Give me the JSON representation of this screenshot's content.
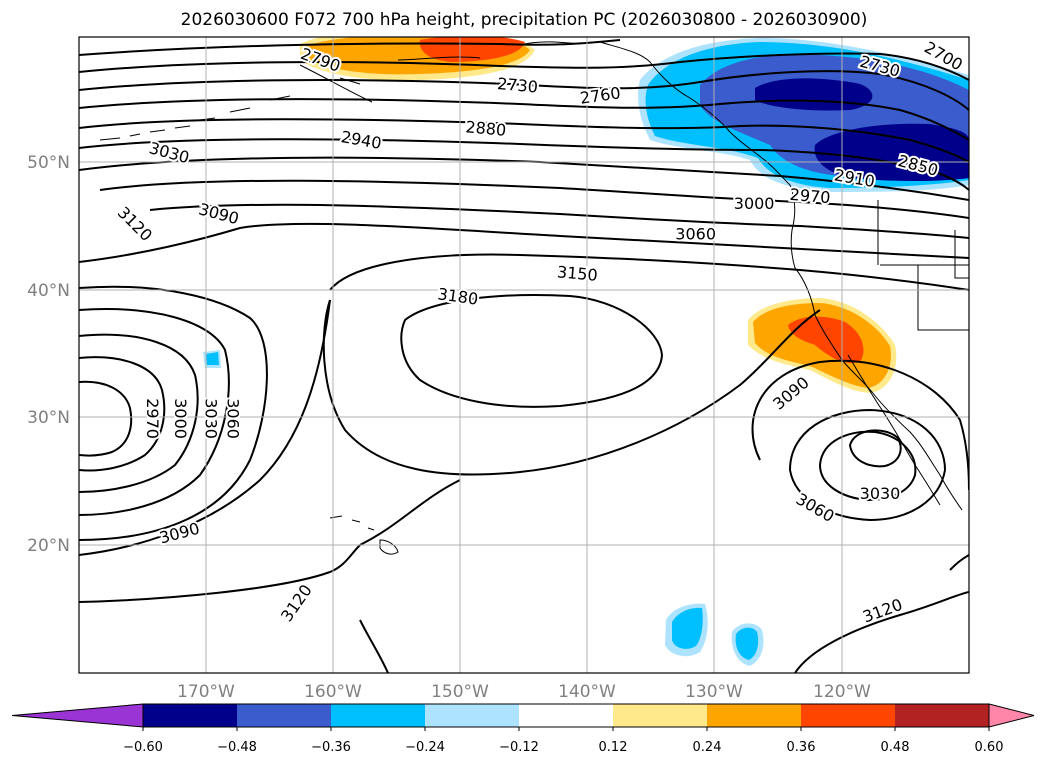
{
  "title": "2026030600 F072 700 hPa height, precipitation PC (2026030800 - 2026030900)",
  "map": {
    "lon_range": [
      -180,
      -110
    ],
    "lat_range": [
      10,
      60
    ],
    "lat_labels": [
      "50°N",
      "40°N",
      "30°N",
      "20°N"
    ],
    "lon_labels": [
      "170°W",
      "160°W",
      "150°W",
      "140°W",
      "130°W",
      "120°W"
    ]
  },
  "contour_labels": [
    {
      "text": "2790",
      "lon": -161.0,
      "lat": 58.2,
      "rot": 20
    },
    {
      "text": "2730",
      "lon": -145.5,
      "lat": 56.2,
      "rot": 5
    },
    {
      "text": "2760",
      "lon": -139.0,
      "lat": 55.4,
      "rot": -8
    },
    {
      "text": "2730",
      "lon": -117.0,
      "lat": 57.7,
      "rot": 15
    },
    {
      "text": "2700",
      "lon": -112.0,
      "lat": 58.5,
      "rot": 30
    },
    {
      "text": "2880",
      "lon": -148.0,
      "lat": 52.8,
      "rot": 5
    },
    {
      "text": "2940",
      "lon": -157.8,
      "lat": 51.9,
      "rot": 10
    },
    {
      "text": "3030",
      "lon": -172.9,
      "lat": 50.9,
      "rot": 15
    },
    {
      "text": "2850",
      "lon": -114.0,
      "lat": 49.9,
      "rot": 15
    },
    {
      "text": "2910",
      "lon": -119.0,
      "lat": 48.9,
      "rot": 10
    },
    {
      "text": "2970",
      "lon": -122.5,
      "lat": 47.5,
      "rot": 5
    },
    {
      "text": "3000",
      "lon": -126.9,
      "lat": 46.9,
      "rot": 0
    },
    {
      "text": "3090",
      "lon": -169.0,
      "lat": 46.1,
      "rot": 15
    },
    {
      "text": "3120",
      "lon": -175.6,
      "lat": 45.3,
      "rot": 45
    },
    {
      "text": "3060",
      "lon": -131.5,
      "lat": 44.5,
      "rot": 0
    },
    {
      "text": "3150",
      "lon": -140.8,
      "lat": 41.4,
      "rot": 5
    },
    {
      "text": "3180",
      "lon": -150.2,
      "lat": 39.6,
      "rot": 8
    },
    {
      "text": "3090",
      "lon": -124.0,
      "lat": 32.0,
      "rot": -40
    },
    {
      "text": "2970",
      "lon": -174.2,
      "lat": 30.0,
      "rot": 90
    },
    {
      "text": "3000",
      "lon": -172.0,
      "lat": 30.0,
      "rot": 90
    },
    {
      "text": "3030",
      "lon": -169.6,
      "lat": 30.0,
      "rot": 90
    },
    {
      "text": "3060",
      "lon": -167.9,
      "lat": 30.0,
      "rot": 90
    },
    {
      "text": "3030",
      "lon": -117.0,
      "lat": 24.1,
      "rot": 0
    },
    {
      "text": "3060",
      "lon": -122.1,
      "lat": 23.0,
      "rot": 30
    },
    {
      "text": "3090",
      "lon": -172.1,
      "lat": 21.0,
      "rot": -15
    },
    {
      "text": "3120",
      "lon": -162.9,
      "lat": 15.5,
      "rot": -55
    },
    {
      "text": "3120",
      "lon": -116.8,
      "lat": 14.9,
      "rot": -20
    }
  ],
  "colorbar": {
    "ticks": [
      "−0.60",
      "−0.48",
      "−0.36",
      "−0.24",
      "−0.12",
      "0.12",
      "0.24",
      "0.36",
      "0.48",
      "0.60"
    ],
    "colors": [
      "#9b34d4",
      "#00008b",
      "#3a5ccc",
      "#00bfff",
      "#aee3ff",
      "#ffffff",
      "#ffe98a",
      "#ffa500",
      "#ff4500",
      "#b22222",
      "#ff86a8"
    ]
  }
}
